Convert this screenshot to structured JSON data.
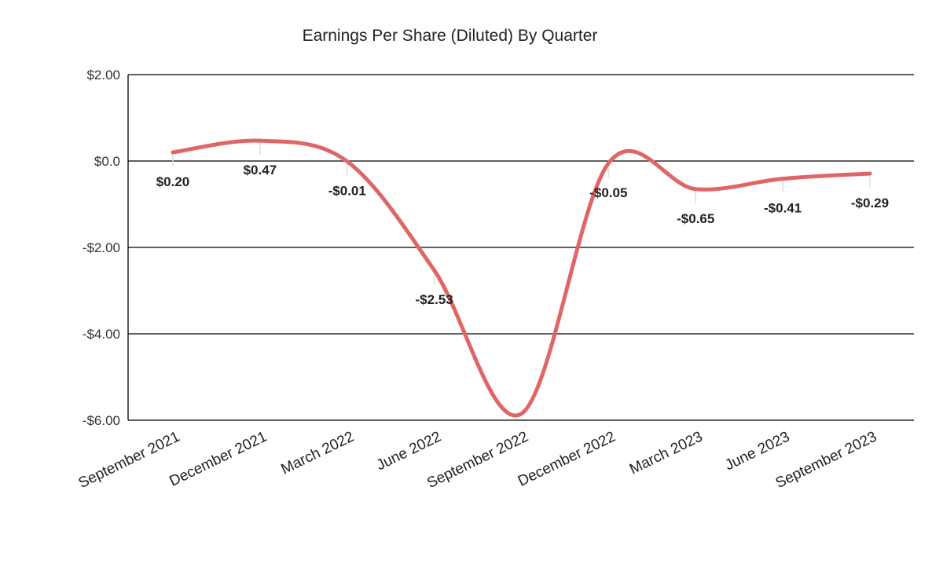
{
  "chart_data": {
    "type": "line",
    "title": "Earnings Per Share (Diluted) By Quarter",
    "xlabel": "",
    "ylabel": "",
    "categories": [
      "September 2021",
      "December 2021",
      "March 2022",
      "June 2022",
      "September 2022",
      "December 2022",
      "March 2023",
      "June 2023",
      "September 2023"
    ],
    "series": [
      {
        "values": [
          0.2,
          0.47,
          -0.01,
          -2.53,
          -5.85,
          -0.05,
          -0.65,
          -0.41,
          -0.29
        ],
        "color": "#e06666",
        "data_labels": [
          "$0.20",
          "$0.47",
          "-$0.01",
          "-$2.53",
          "",
          "-$0.05",
          "-$0.65",
          "-$0.41",
          "-$0.29"
        ]
      }
    ],
    "ylim": [
      -6,
      2
    ],
    "y_ticks": [
      2,
      0,
      -2,
      -4,
      -6
    ],
    "y_tick_labels": [
      "$2.00",
      "$0.0",
      "-$2.00",
      "-$4.00",
      "-$6.00"
    ],
    "grid": true,
    "legend": "none",
    "smooth": true
  }
}
